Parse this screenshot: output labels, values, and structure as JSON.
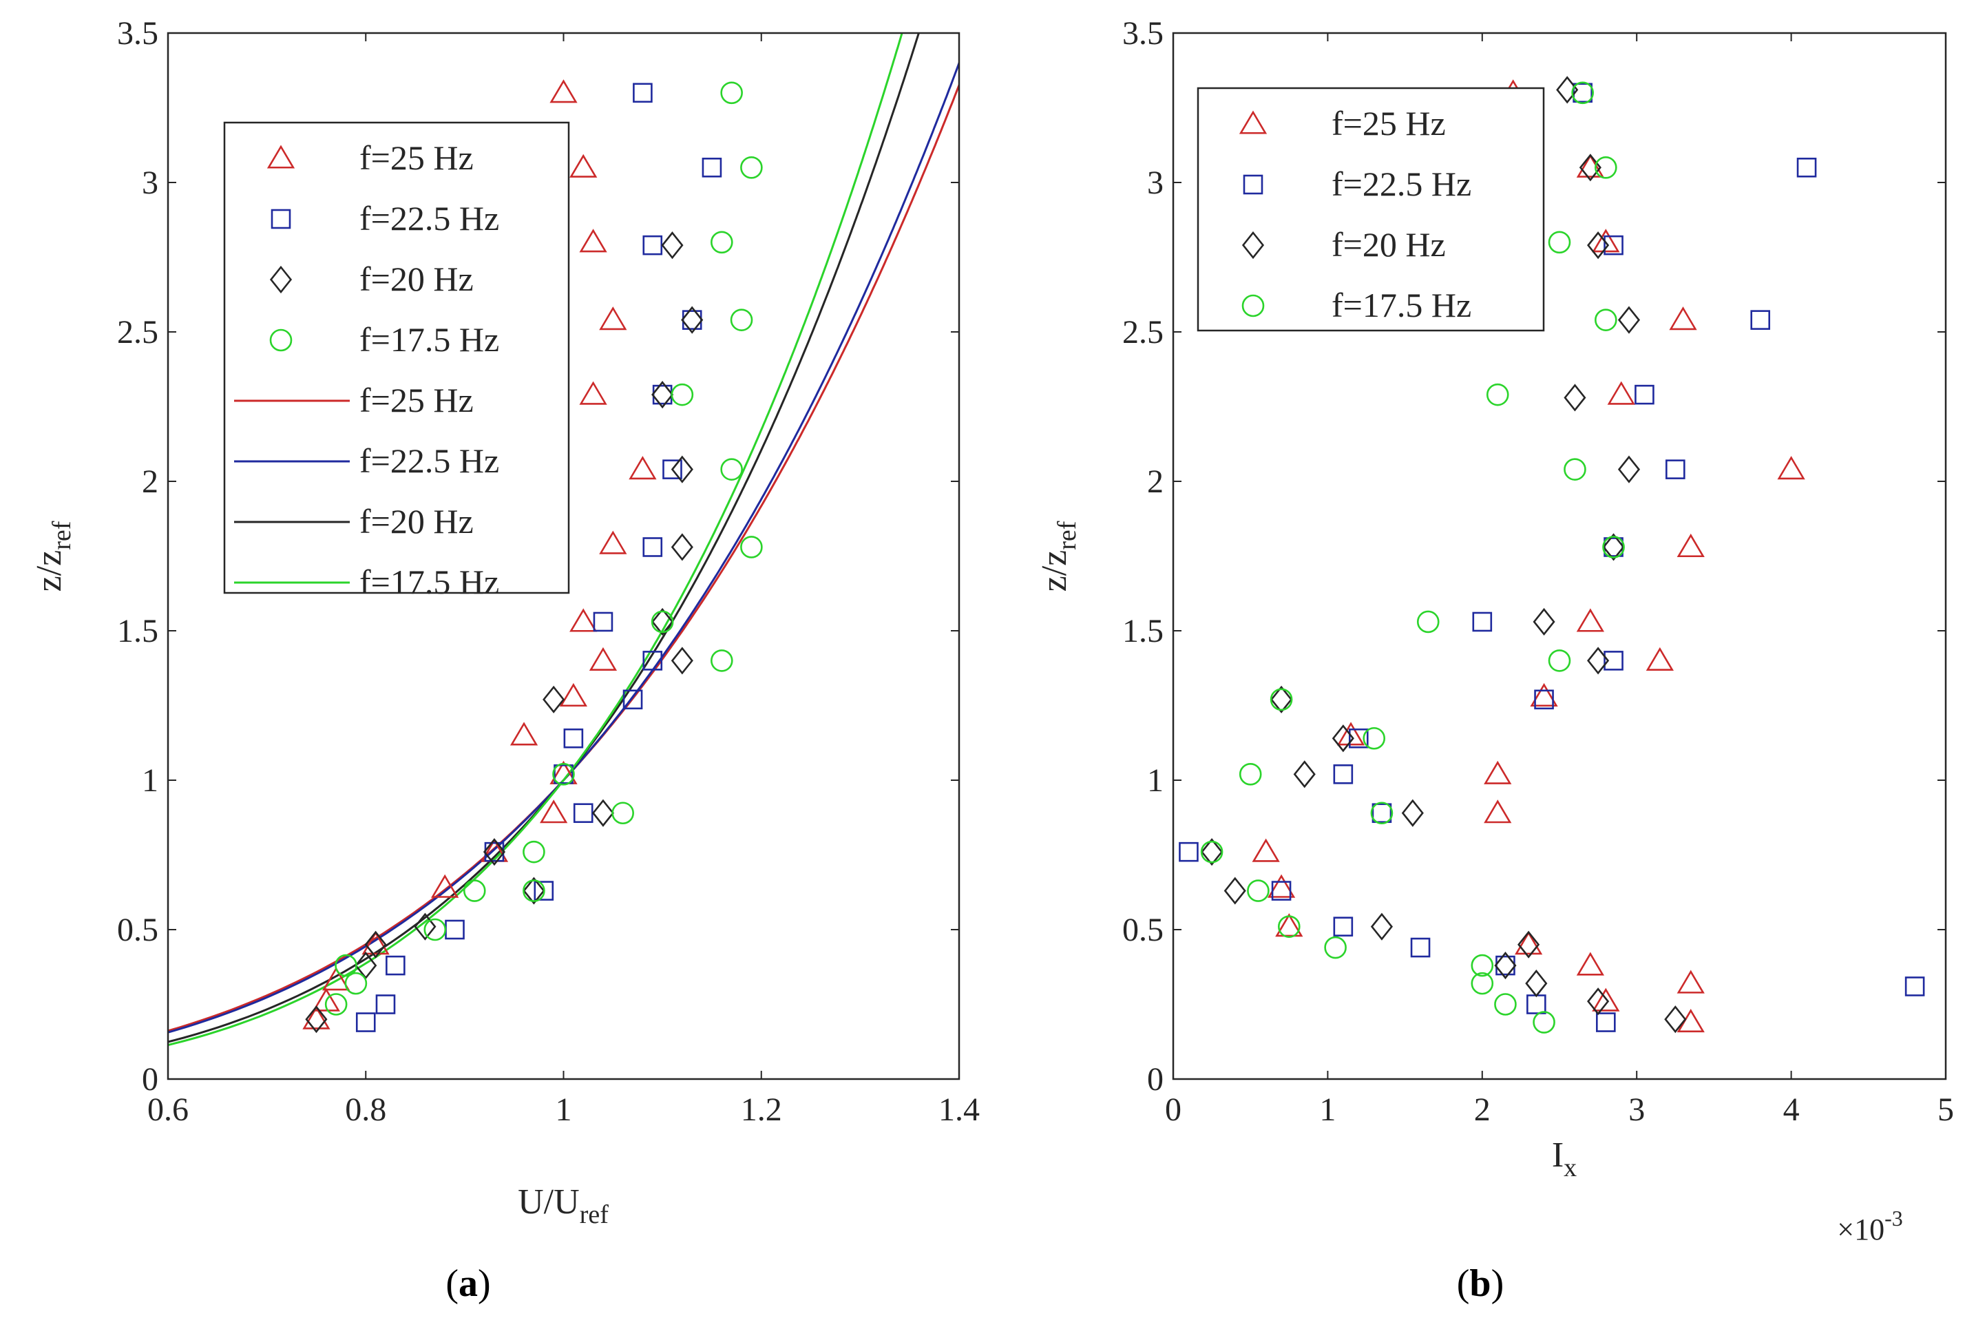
{
  "colors": {
    "f25": "#cc2a2a",
    "f225": "#1f2a9e",
    "f20": "#262626",
    "f175": "#2bd42b"
  },
  "chart_data": [
    {
      "type": "scatter",
      "panel_label_open": "(",
      "panel_label_letter": "a",
      "panel_label_close": ")",
      "xlabel_main": "U/U",
      "xlabel_sub": "ref",
      "ylabel_main": "z/z",
      "ylabel_sub": "ref",
      "xlim": [
        0.6,
        1.4
      ],
      "ylim": [
        0,
        3.5
      ],
      "xticks": [
        "0.6",
        "0.8",
        "1",
        "1.2",
        "1.4"
      ],
      "yticks": [
        "0",
        "0.5",
        "1",
        "1.5",
        "2",
        "2.5",
        "3",
        "3.5"
      ],
      "legend": [
        "f=25 Hz",
        "f=22.5 Hz",
        "f=20 Hz",
        "f=17.5 Hz",
        "f=25 Hz",
        "f=22.5 Hz",
        "f=20 Hz",
        "f=17.5 Hz"
      ],
      "series": [
        {
          "name": "f=25 Hz",
          "marker": "triangle",
          "color": "f25",
          "x": [
            1.0,
            1.02,
            1.03,
            1.05,
            1.03,
            1.08,
            1.05,
            1.02,
            1.04,
            1.01,
            0.96,
            1.0,
            0.99,
            0.93,
            0.88,
            0.81,
            0.77,
            0.76,
            0.75
          ],
          "y": [
            3.3,
            3.05,
            2.8,
            2.54,
            2.29,
            2.04,
            1.79,
            1.53,
            1.4,
            1.28,
            1.15,
            1.02,
            0.89,
            0.76,
            0.64,
            0.45,
            0.33,
            0.26,
            0.2
          ]
        },
        {
          "name": "f=22.5 Hz",
          "marker": "square",
          "color": "f225",
          "x": [
            1.08,
            1.15,
            1.09,
            1.13,
            1.1,
            1.11,
            1.09,
            1.04,
            1.09,
            1.07,
            1.01,
            1.0,
            1.02,
            0.93,
            0.98,
            0.89,
            0.83,
            0.82,
            0.8
          ],
          "y": [
            3.3,
            3.05,
            2.79,
            2.54,
            2.29,
            2.04,
            1.78,
            1.53,
            1.4,
            1.27,
            1.14,
            1.02,
            0.89,
            0.76,
            0.63,
            0.5,
            0.38,
            0.25,
            0.19
          ]
        },
        {
          "name": "f=20 Hz",
          "marker": "diamond",
          "color": "f20",
          "x": [
            1.11,
            1.13,
            1.1,
            1.12,
            1.12,
            1.1,
            1.12,
            0.99,
            1.04,
            0.93,
            0.97,
            0.86,
            0.81,
            0.8,
            0.75
          ],
          "y": [
            2.79,
            2.54,
            2.29,
            2.04,
            1.78,
            1.53,
            1.4,
            1.27,
            0.89,
            0.76,
            0.63,
            0.51,
            0.45,
            0.38,
            0.2
          ]
        },
        {
          "name": "f=17.5 Hz",
          "marker": "circle",
          "color": "f175",
          "x": [
            1.17,
            1.19,
            1.16,
            1.18,
            1.12,
            1.17,
            1.19,
            1.1,
            1.16,
            1.0,
            1.06,
            0.97,
            0.97,
            0.91,
            0.87,
            0.78,
            0.79,
            0.77
          ],
          "y": [
            3.3,
            3.05,
            2.8,
            2.54,
            2.29,
            2.04,
            1.78,
            1.53,
            1.4,
            1.02,
            0.89,
            0.76,
            0.63,
            0.63,
            0.5,
            0.38,
            0.32,
            0.25
          ]
        }
      ],
      "curves": [
        {
          "name": "f=25 Hz",
          "color": "f25",
          "alpha": 0.28,
          "type": "power_law",
          "ref_point": [
            1.0,
            1.0
          ]
        },
        {
          "name": "f=22.5 Hz",
          "color": "f225",
          "alpha": 0.275,
          "type": "power_law",
          "ref_point": [
            1.0,
            1.0
          ]
        },
        {
          "name": "f=20 Hz",
          "color": "f20",
          "alpha": 0.245,
          "type": "power_law",
          "ref_point": [
            1.0,
            1.0
          ]
        },
        {
          "name": "f=17.5 Hz",
          "color": "f175",
          "alpha": 0.235,
          "type": "power_law",
          "ref_point": [
            1.0,
            1.0
          ]
        }
      ]
    },
    {
      "type": "scatter",
      "panel_label_open": "(",
      "panel_label_letter": "b",
      "panel_label_close": ")",
      "xlabel_main": "I",
      "xlabel_sub": "x",
      "ylabel_main": "z/z",
      "ylabel_sub": "ref",
      "x_multiplier_base": "×10",
      "x_multiplier_exp": "-3",
      "xlim": [
        0,
        5
      ],
      "ylim": [
        0,
        3.5
      ],
      "xticks": [
        "0",
        "1",
        "2",
        "3",
        "4",
        "5"
      ],
      "yticks": [
        "0",
        "0.5",
        "1",
        "1.5",
        "2",
        "2.5",
        "3",
        "3.5"
      ],
      "legend": [
        "f=25 Hz",
        "f=22.5 Hz",
        "f=20 Hz",
        "f=17.5 Hz"
      ],
      "series": [
        {
          "name": "f=25 Hz",
          "marker": "triangle",
          "color": "f25",
          "x": [
            2.2,
            2.7,
            2.8,
            3.3,
            2.9,
            4.0,
            3.35,
            2.7,
            3.15,
            2.4,
            1.15,
            2.1,
            2.1,
            0.6,
            0.7,
            0.75,
            2.3,
            2.7,
            3.35,
            2.8,
            3.35
          ],
          "y": [
            3.3,
            3.05,
            2.8,
            2.54,
            2.29,
            2.04,
            1.78,
            1.53,
            1.4,
            1.28,
            1.15,
            1.02,
            0.89,
            0.76,
            0.64,
            0.51,
            0.45,
            0.38,
            0.32,
            0.26,
            0.19
          ]
        },
        {
          "name": "f=22.5 Hz",
          "marker": "square",
          "color": "f225",
          "x": [
            2.65,
            4.1,
            2.85,
            3.8,
            3.05,
            3.25,
            2.85,
            2.0,
            2.85,
            2.4,
            1.2,
            1.1,
            1.35,
            0.1,
            0.7,
            1.1,
            1.6,
            2.15,
            4.8,
            2.35,
            2.8
          ],
          "y": [
            3.3,
            3.05,
            2.79,
            2.54,
            2.29,
            2.04,
            1.78,
            1.53,
            1.4,
            1.27,
            1.14,
            1.02,
            0.89,
            0.76,
            0.63,
            0.51,
            0.44,
            0.38,
            0.31,
            0.25,
            0.19
          ]
        },
        {
          "name": "f=20 Hz",
          "marker": "diamond",
          "color": "f20",
          "x": [
            2.55,
            2.7,
            2.75,
            2.95,
            2.6,
            2.95,
            2.85,
            2.4,
            2.75,
            0.7,
            1.1,
            0.85,
            1.55,
            0.25,
            0.4,
            1.35,
            2.3,
            2.15,
            2.35,
            2.75,
            3.25
          ],
          "y": [
            3.31,
            3.05,
            2.79,
            2.54,
            2.28,
            2.04,
            1.78,
            1.53,
            1.4,
            1.27,
            1.14,
            1.02,
            0.89,
            0.76,
            0.63,
            0.51,
            0.45,
            0.38,
            0.32,
            0.26,
            0.2
          ]
        },
        {
          "name": "f=17.5 Hz",
          "marker": "circle",
          "color": "f175",
          "x": [
            2.65,
            2.8,
            2.5,
            2.8,
            2.1,
            2.6,
            2.85,
            1.65,
            2.5,
            0.7,
            1.3,
            0.5,
            1.35,
            0.25,
            0.55,
            0.75,
            1.05,
            2.0,
            2.0,
            2.15,
            2.4
          ],
          "y": [
            3.3,
            3.05,
            2.8,
            2.54,
            2.29,
            2.04,
            1.78,
            1.53,
            1.4,
            1.27,
            1.14,
            1.02,
            0.89,
            0.76,
            0.63,
            0.51,
            0.44,
            0.38,
            0.32,
            0.25,
            0.19
          ]
        }
      ]
    }
  ]
}
